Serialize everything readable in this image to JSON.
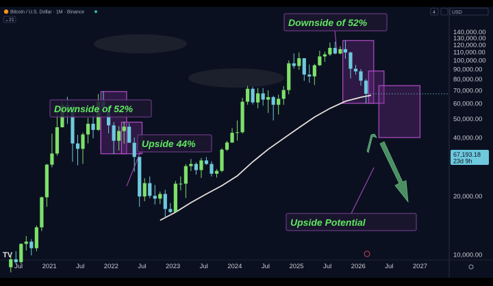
{
  "header": {
    "symbol": "Bitcoin / U.S. Dollar · 1M · Binance",
    "indicator": "21",
    "currency": "USD",
    "badge": "4"
  },
  "price_tag": {
    "price": "67,193.18",
    "countdown": "23d 9h"
  },
  "colors": {
    "background": "#0b1020",
    "up": "#7ee06a",
    "down": "#6ec9dd",
    "ma_line": "#e8e2de",
    "box_border": "#b24fc8",
    "box_fill": "#6a2a80",
    "annotation_text": "#5fe85f",
    "arrow": "#4a8e62"
  },
  "annotations": [
    {
      "text": "Downside of 52%"
    },
    {
      "text": "Upside 44%"
    },
    {
      "text": "Downside of 52%"
    },
    {
      "text": "Upside Potential"
    }
  ],
  "chart_data": {
    "type": "candlestick",
    "title": "",
    "scale": "log",
    "ylim": [
      10000,
      150000
    ],
    "xlim": [
      "2020-05",
      "2027-04"
    ],
    "y_ticks": [
      "10,000.00",
      "20,000.00",
      "30,000.00",
      "40,000.00",
      "50,000.00",
      "60,000.00",
      "70,000.00",
      "80,000.00",
      "90,000.00",
      "100,000.00",
      "110,000.00",
      "120,000.00",
      "130,000.00",
      "140,000.00"
    ],
    "x_ticks": [
      {
        "label": "Jul",
        "date": "2020-07"
      },
      {
        "label": "2021",
        "date": "2021-01"
      },
      {
        "label": "Jul",
        "date": "2021-07"
      },
      {
        "label": "2022",
        "date": "2022-01"
      },
      {
        "label": "Jul",
        "date": "2022-07"
      },
      {
        "label": "2023",
        "date": "2023-01"
      },
      {
        "label": "Jul",
        "date": "2023-07"
      },
      {
        "label": "2024",
        "date": "2024-01"
      },
      {
        "label": "Jul",
        "date": "2024-07"
      },
      {
        "label": "2025",
        "date": "2025-01"
      },
      {
        "label": "Jul",
        "date": "2025-07"
      },
      {
        "label": "2026",
        "date": "2026-01"
      },
      {
        "label": "Jul",
        "date": "2026-07"
      },
      {
        "label": "2027",
        "date": "2027-01"
      }
    ],
    "candles": [
      {
        "date": "2020-05",
        "o": 8600,
        "h": 10000,
        "l": 8100,
        "c": 9450
      },
      {
        "date": "2020-06",
        "o": 9450,
        "h": 10400,
        "l": 8900,
        "c": 9140
      },
      {
        "date": "2020-07",
        "o": 9140,
        "h": 11400,
        "l": 8950,
        "c": 11350
      },
      {
        "date": "2020-08",
        "o": 11350,
        "h": 12450,
        "l": 10500,
        "c": 11650
      },
      {
        "date": "2020-09",
        "o": 11650,
        "h": 12000,
        "l": 9900,
        "c": 10780
      },
      {
        "date": "2020-10",
        "o": 10780,
        "h": 14100,
        "l": 10400,
        "c": 13800
      },
      {
        "date": "2020-11",
        "o": 13800,
        "h": 19900,
        "l": 13200,
        "c": 19700
      },
      {
        "date": "2020-12",
        "o": 19700,
        "h": 29300,
        "l": 17600,
        "c": 29000
      },
      {
        "date": "2021-01",
        "o": 29000,
        "h": 41900,
        "l": 28100,
        "c": 33100
      },
      {
        "date": "2021-02",
        "o": 33100,
        "h": 58300,
        "l": 32300,
        "c": 45200
      },
      {
        "date": "2021-03",
        "o": 45200,
        "h": 61800,
        "l": 45000,
        "c": 58800
      },
      {
        "date": "2021-04",
        "o": 58800,
        "h": 64800,
        "l": 47000,
        "c": 57700
      },
      {
        "date": "2021-05",
        "o": 57700,
        "h": 59500,
        "l": 30000,
        "c": 37300
      },
      {
        "date": "2021-06",
        "o": 37300,
        "h": 41300,
        "l": 28800,
        "c": 35000
      },
      {
        "date": "2021-07",
        "o": 35000,
        "h": 42400,
        "l": 29300,
        "c": 41500
      },
      {
        "date": "2021-08",
        "o": 41500,
        "h": 50500,
        "l": 37300,
        "c": 47100
      },
      {
        "date": "2021-09",
        "o": 47100,
        "h": 52900,
        "l": 39600,
        "c": 43800
      },
      {
        "date": "2021-10",
        "o": 43800,
        "h": 67000,
        "l": 43300,
        "c": 61300
      },
      {
        "date": "2021-11",
        "o": 61300,
        "h": 69000,
        "l": 53300,
        "c": 57000
      },
      {
        "date": "2021-12",
        "o": 57000,
        "h": 59100,
        "l": 42000,
        "c": 46200
      },
      {
        "date": "2022-01",
        "o": 46200,
        "h": 48000,
        "l": 32900,
        "c": 38500
      },
      {
        "date": "2022-02",
        "o": 38500,
        "h": 45800,
        "l": 34300,
        "c": 43200
      },
      {
        "date": "2022-03",
        "o": 43200,
        "h": 48200,
        "l": 37200,
        "c": 45500
      },
      {
        "date": "2022-04",
        "o": 45500,
        "h": 47400,
        "l": 37700,
        "c": 37600
      },
      {
        "date": "2022-05",
        "o": 37600,
        "h": 40000,
        "l": 26700,
        "c": 31800
      },
      {
        "date": "2022-06",
        "o": 31800,
        "h": 31900,
        "l": 17600,
        "c": 19900
      },
      {
        "date": "2022-07",
        "o": 19900,
        "h": 24700,
        "l": 18800,
        "c": 23300
      },
      {
        "date": "2022-08",
        "o": 23300,
        "h": 25200,
        "l": 19500,
        "c": 20050
      },
      {
        "date": "2022-09",
        "o": 20050,
        "h": 22800,
        "l": 18100,
        "c": 19400
      },
      {
        "date": "2022-10",
        "o": 19400,
        "h": 21100,
        "l": 18200,
        "c": 20500
      },
      {
        "date": "2022-11",
        "o": 20500,
        "h": 21500,
        "l": 15500,
        "c": 17150
      },
      {
        "date": "2022-12",
        "o": 17150,
        "h": 18400,
        "l": 16300,
        "c": 16550
      },
      {
        "date": "2023-01",
        "o": 16550,
        "h": 23900,
        "l": 16500,
        "c": 23150
      },
      {
        "date": "2023-02",
        "o": 23150,
        "h": 25250,
        "l": 21400,
        "c": 23150
      },
      {
        "date": "2023-03",
        "o": 23150,
        "h": 29200,
        "l": 19550,
        "c": 28500
      },
      {
        "date": "2023-04",
        "o": 28500,
        "h": 31000,
        "l": 26900,
        "c": 29250
      },
      {
        "date": "2023-05",
        "o": 29250,
        "h": 29800,
        "l": 25800,
        "c": 27200
      },
      {
        "date": "2023-06",
        "o": 27200,
        "h": 31400,
        "l": 24800,
        "c": 30500
      },
      {
        "date": "2023-07",
        "o": 30500,
        "h": 31800,
        "l": 28900,
        "c": 29250
      },
      {
        "date": "2023-08",
        "o": 29250,
        "h": 30200,
        "l": 25200,
        "c": 26050
      },
      {
        "date": "2023-09",
        "o": 26050,
        "h": 27500,
        "l": 24900,
        "c": 26950
      },
      {
        "date": "2023-10",
        "o": 26950,
        "h": 35200,
        "l": 26550,
        "c": 34650
      },
      {
        "date": "2023-11",
        "o": 34650,
        "h": 38450,
        "l": 34100,
        "c": 37700
      },
      {
        "date": "2023-12",
        "o": 37700,
        "h": 44700,
        "l": 37600,
        "c": 42300
      },
      {
        "date": "2024-01",
        "o": 42300,
        "h": 48950,
        "l": 38550,
        "c": 42600
      },
      {
        "date": "2024-02",
        "o": 42600,
        "h": 64000,
        "l": 41900,
        "c": 61150
      },
      {
        "date": "2024-03",
        "o": 61150,
        "h": 73800,
        "l": 59000,
        "c": 71300
      },
      {
        "date": "2024-04",
        "o": 71300,
        "h": 72750,
        "l": 59200,
        "c": 60650
      },
      {
        "date": "2024-05",
        "o": 60650,
        "h": 71950,
        "l": 56550,
        "c": 67500
      },
      {
        "date": "2024-06",
        "o": 67500,
        "h": 71950,
        "l": 58400,
        "c": 62700
      },
      {
        "date": "2024-07",
        "o": 62700,
        "h": 70000,
        "l": 53500,
        "c": 64600
      },
      {
        "date": "2024-08",
        "o": 64600,
        "h": 65600,
        "l": 49000,
        "c": 58950
      },
      {
        "date": "2024-09",
        "o": 58950,
        "h": 66500,
        "l": 52550,
        "c": 63300
      },
      {
        "date": "2024-10",
        "o": 63300,
        "h": 73600,
        "l": 58900,
        "c": 70200
      },
      {
        "date": "2024-11",
        "o": 70200,
        "h": 99800,
        "l": 66800,
        "c": 96400
      },
      {
        "date": "2024-12",
        "o": 96400,
        "h": 108350,
        "l": 90500,
        "c": 93400
      },
      {
        "date": "2025-01",
        "o": 93400,
        "h": 109600,
        "l": 89200,
        "c": 102400
      },
      {
        "date": "2025-02",
        "o": 102400,
        "h": 102500,
        "l": 78250,
        "c": 84350
      },
      {
        "date": "2025-03",
        "o": 84350,
        "h": 95000,
        "l": 76600,
        "c": 82550
      },
      {
        "date": "2025-04",
        "o": 82550,
        "h": 95750,
        "l": 74500,
        "c": 94200
      },
      {
        "date": "2025-05",
        "o": 94200,
        "h": 111950,
        "l": 93350,
        "c": 104600
      },
      {
        "date": "2025-06",
        "o": 104600,
        "h": 110500,
        "l": 98200,
        "c": 107150
      },
      {
        "date": "2025-07",
        "o": 107150,
        "h": 123200,
        "l": 105100,
        "c": 115750
      },
      {
        "date": "2025-08",
        "o": 115750,
        "h": 124450,
        "l": 107250,
        "c": 108250
      },
      {
        "date": "2025-09",
        "o": 108250,
        "h": 117900,
        "l": 107300,
        "c": 114050
      },
      {
        "date": "2025-10",
        "o": 114050,
        "h": 126200,
        "l": 102000,
        "c": 109600
      },
      {
        "date": "2025-11",
        "o": 109600,
        "h": 110600,
        "l": 80600,
        "c": 90400
      },
      {
        "date": "2025-12",
        "o": 90400,
        "h": 94600,
        "l": 84400,
        "c": 87600
      },
      {
        "date": "2026-01",
        "o": 87600,
        "h": 90000,
        "l": 74000,
        "c": 78500
      },
      {
        "date": "2026-02",
        "o": 78500,
        "h": 80000,
        "l": 60000,
        "c": 67193
      }
    ],
    "moving_average": [
      {
        "date": "2022-10",
        "v": 15000
      },
      {
        "date": "2023-01",
        "v": 16500
      },
      {
        "date": "2023-04",
        "v": 18500
      },
      {
        "date": "2023-07",
        "v": 20500
      },
      {
        "date": "2023-10",
        "v": 22600
      },
      {
        "date": "2024-01",
        "v": 25400
      },
      {
        "date": "2024-04",
        "v": 30000
      },
      {
        "date": "2024-07",
        "v": 34800
      },
      {
        "date": "2024-10",
        "v": 39600
      },
      {
        "date": "2025-01",
        "v": 45000
      },
      {
        "date": "2025-04",
        "v": 51000
      },
      {
        "date": "2025-07",
        "v": 56500
      },
      {
        "date": "2025-10",
        "v": 61500
      },
      {
        "date": "2026-01",
        "v": 64500
      },
      {
        "date": "2026-03",
        "v": 66000
      }
    ],
    "boxes": [
      {
        "from": "2021-11",
        "to": "2022-03",
        "top": 69000,
        "bottom": 33000
      },
      {
        "from": "2022-03",
        "to": "2022-06",
        "top": 48000,
        "bottom": 33000
      },
      {
        "from": "2025-10",
        "to": "2026-03",
        "top": 126200,
        "bottom": 60000
      },
      {
        "from": "2026-03",
        "to": "2026-05",
        "top": 88000,
        "bottom": 60000
      },
      {
        "from": "2026-05",
        "to": "2026-12",
        "top": 74000,
        "bottom": 40000
      }
    ]
  }
}
